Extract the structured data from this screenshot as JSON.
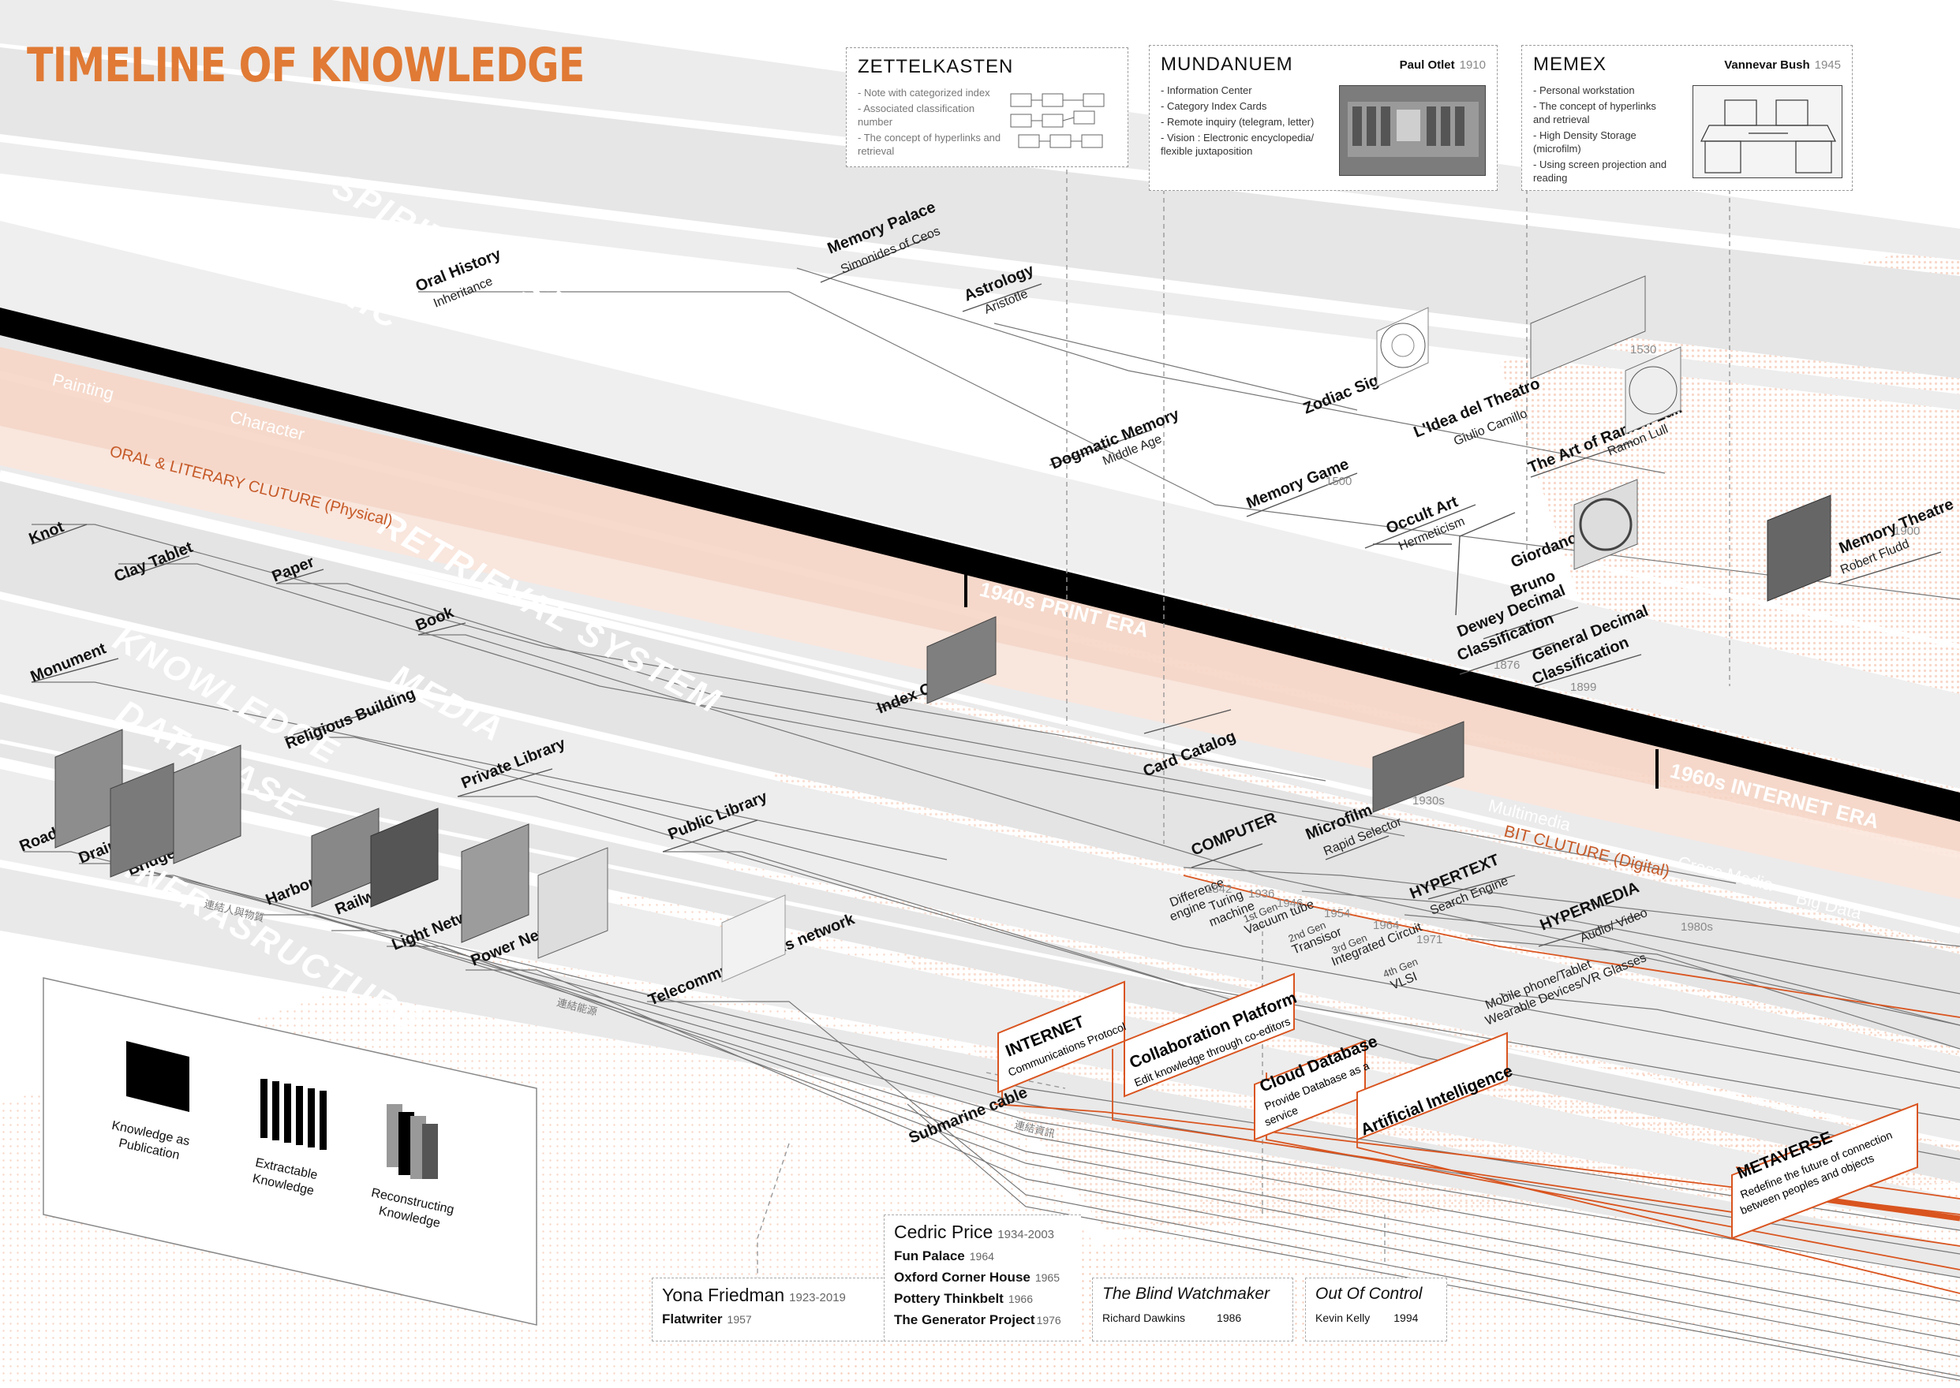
{
  "title": "TIMELINE OF KNOWLEDGE",
  "colors": {
    "accent": "#e07a35",
    "band_gray": "#e2e2e2",
    "band_orange": "#f3c9b5",
    "era_bar": "#000000",
    "line_orange": "#d9541f"
  },
  "info_boxes": {
    "zettelkasten": {
      "title": "ZETTELKASTEN",
      "points": [
        "- Note with categorized index",
        "- Associated classification number",
        "- The concept of hyperlinks and retrieval"
      ]
    },
    "mundanuem": {
      "title": "MUNDANUEM",
      "person": "Paul Otlet",
      "year": "1910",
      "points": [
        "- Information Center",
        "- Category Index Cards",
        "- Remote inquiry (telegram, letter)",
        "- Vision : Electronic encyclopedia/ flexible juxtaposition"
      ]
    },
    "memex": {
      "title": "MEMEX",
      "person": "Vannevar Bush",
      "year": "1945",
      "points": [
        "- Personal workstation",
        "- The concept of hyperlinks and retrieval",
        "- High Density Storage (microfilm)",
        "- Using screen projection and reading"
      ]
    }
  },
  "bands": {
    "spiritual_space": "SPIRITUAL SPACE",
    "mnemonic": "MNEMONIC",
    "painting": "Painting",
    "character": "Character",
    "oral_literary": "ORAL & LITERARY CLUTURE (Physical)",
    "retrieval_system": "RETRIEVAL SYSTEM",
    "knowledge": "KNOWLEDGE",
    "media": "MEDIA",
    "database": "DATABASE",
    "infrastructure": "INFRASRUCTURE",
    "multimedia": "Multimedia",
    "bit_culture": "BIT CLUTURE (Digital)",
    "cross_media": "Cross Media",
    "big_data": "Big Data",
    "cjk_1": "連結人與物質",
    "cjk_2": "連結能源",
    "cjk_3": "連結資訊"
  },
  "eras": {
    "print": "1940s PRINT ERA",
    "internet": "1960s INTERNET ERA"
  },
  "nodes": {
    "oral_history": "Oral History",
    "oral_history_sub": "Inheritance",
    "memory_palace": "Memory Palace",
    "memory_palace_sub": "Simonides of Ceos",
    "astrology": "Astrology",
    "astrology_sub": "Aristotle",
    "zodiac": "Zodiac Sign",
    "theatro": "L'Idea del Theatro",
    "theatro_sub": "Giulio Camillo",
    "theatro_year": "1530",
    "ramon": "The Art of Ramon Lull",
    "ramon_sub": "Ramon Lull",
    "dogmatic": "Dogmatic Memory",
    "dogmatic_sub": "Middle Age",
    "memory_game": "Memory Game",
    "memory_game_year": "1500",
    "occult": "Occult Art",
    "occult_sub": "Hermeticism",
    "giordano": "Giordano",
    "bruno": "Bruno",
    "memory_theatre": "Memory Theatre",
    "memory_theatre_sub": "Robert Fludd",
    "memory_theatre_year": "1900",
    "dewey": "Dewey Decimal",
    "dewey2": "Classification",
    "dewey_year": "1876",
    "general": "General Decimal",
    "general2": "Classification",
    "general_year": "1899",
    "knot": "Knot",
    "clay": "Clay Tablet",
    "paper": "Paper",
    "book": "Book",
    "monument": "Monument",
    "religious": "Religious Building",
    "private_library": "Private Library",
    "public_library": "Public Library",
    "index_card": "Index Card",
    "card_catalog": "Card Catalog",
    "road": "Road",
    "drain": "Drain",
    "bridge": "Bridge",
    "harbor": "Harbor",
    "railway": "Railway",
    "light_network": "Light Network",
    "power_network": "Power Network",
    "telecom": "Telecommunications network",
    "computer": "COMPUTER",
    "microfilm": "Microfilm",
    "microfilm_sub": "Rapid Selector",
    "microfilm_year": "1930s",
    "hypertext": "HYPERTEXT",
    "hypertext_sub": "Search Engine",
    "hypermedia": "HYPERMEDIA",
    "hypermedia_sub": "Audio/ Video",
    "hypermedia_year": "1980s",
    "difference_engine": "Difference",
    "difference_engine2": "engine",
    "difference_year": "1842",
    "turing": "Turing",
    "turing2": "machine",
    "turing_year": "1936",
    "gen1": "1st Gen",
    "gen1_item": "Vacuum tube",
    "gen1_year": "1946",
    "gen2": "2nd Gen",
    "gen2_item": "Transisor",
    "gen2_year": "1954",
    "gen3": "3rd Gen",
    "gen3_item": "Integrated Circuit",
    "gen3_year": "1964",
    "gen4": "4th Gen",
    "gen4_item": "VLSI",
    "gen4_year": "1971",
    "mobile": "Mobile phone/Tablet",
    "wearable": "Wearable Devices/VR Glasses",
    "submarine": "Submarine cable"
  },
  "panels": {
    "internet": {
      "title": "INTERNET",
      "sub": "Communications Protocol"
    },
    "collab": {
      "title": "Collaboration Platform",
      "sub": "Edit knowledge through co-editors"
    },
    "cloud": {
      "title": "Cloud Database",
      "sub1": "Provide Database as a",
      "sub2": "service"
    },
    "ai": {
      "title": "Artificial Intelligence"
    },
    "metaverse": {
      "title": "METAVERSE",
      "sub1": "Redefine the future of connection",
      "sub2": "between peoples and objects"
    }
  },
  "legend": {
    "publication": [
      "Knowledge as",
      "Publication"
    ],
    "extractable": [
      "Extractable",
      "Knowledge"
    ],
    "reconstructing": [
      "Reconstructing",
      "Knowledge"
    ]
  },
  "cards": {
    "yona": {
      "name": "Yona Friedman",
      "years": "1923-2019",
      "work": "Flatwriter",
      "work_year": "1957"
    },
    "cedric": {
      "name": "Cedric Price",
      "years": "1934-2003",
      "works": [
        {
          "name": "Fun Palace",
          "year": "1964"
        },
        {
          "name": "Oxford Corner House",
          "year": "1965"
        },
        {
          "name": "Pottery Thinkbelt",
          "year": "1966"
        },
        {
          "name": "The Generator Project",
          "year": "1976"
        }
      ]
    },
    "blind": {
      "title": "The Blind Watchmaker",
      "author": "Richard Dawkins",
      "year": "1986"
    },
    "control": {
      "title": "Out Of Control",
      "author": "Kevin Kelly",
      "year": "1994"
    }
  }
}
